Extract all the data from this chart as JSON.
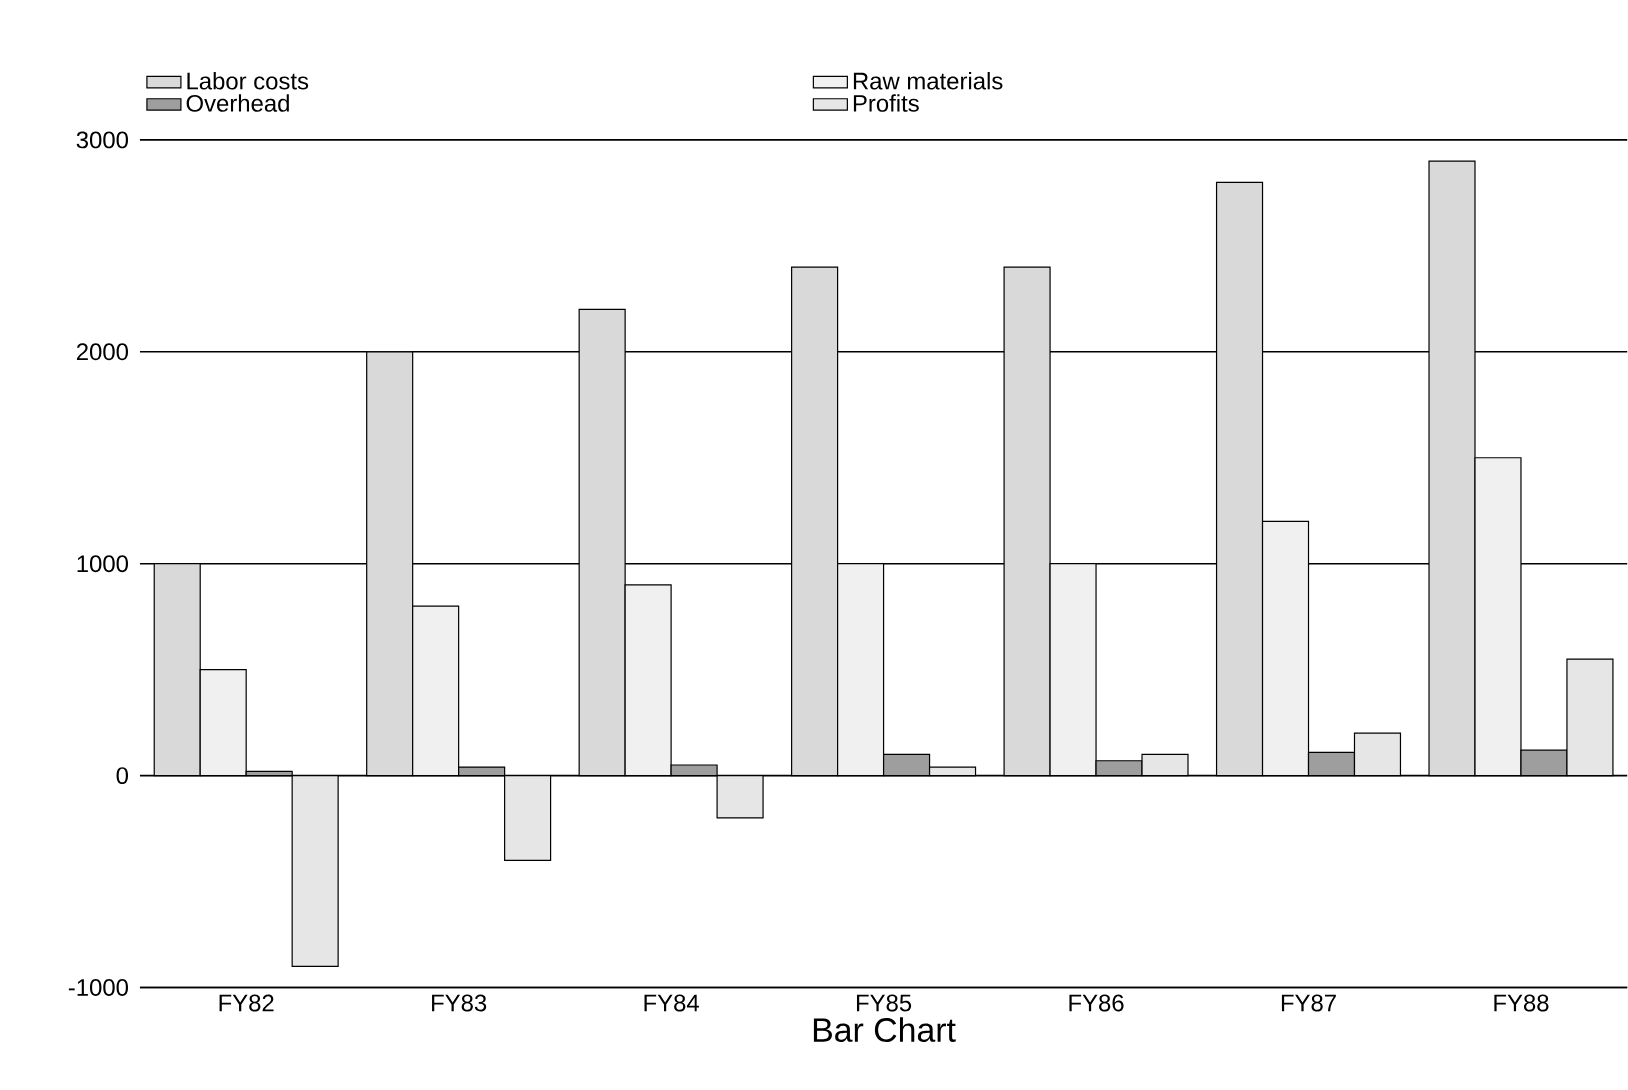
{
  "chart_data": {
    "type": "bar",
    "xlabel": "Bar Chart",
    "categories": [
      "FY82",
      "FY83",
      "FY84",
      "FY85",
      "FY86",
      "FY87",
      "FY88"
    ],
    "series": [
      {
        "name": "Labor costs",
        "color": "#d9d9d9",
        "values": [
          1000,
          2000,
          2200,
          2400,
          2400,
          2800,
          2900
        ]
      },
      {
        "name": "Raw materials",
        "color": "#f0f0f0",
        "values": [
          500,
          800,
          900,
          1000,
          1000,
          1200,
          1500
        ]
      },
      {
        "name": "Overhead",
        "color": "#9e9e9e",
        "values": [
          20,
          40,
          50,
          100,
          70,
          110,
          120
        ]
      },
      {
        "name": "Profits",
        "color": "#e6e6e6",
        "values": [
          -900,
          -400,
          -200,
          40,
          100,
          200,
          550
        ]
      }
    ],
    "ylim": [
      -1000,
      3000
    ],
    "yticks": [
      -1000,
      0,
      1000,
      2000,
      3000
    ],
    "grid": "y",
    "legend": "top"
  }
}
